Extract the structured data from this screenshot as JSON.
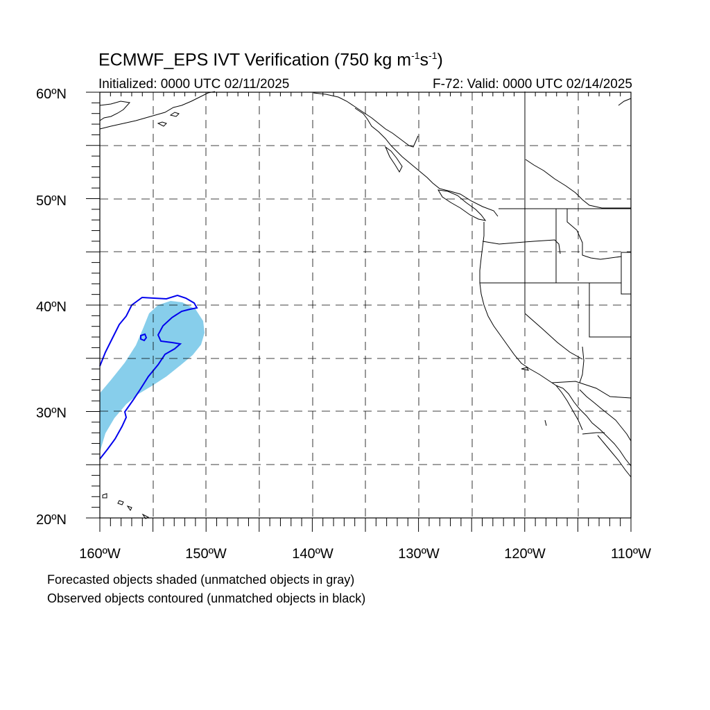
{
  "title": {
    "main": "ECMWF_EPS IVT Verification (750 kg m",
    "sup1": "-1",
    "mid": "s",
    "sup2": "-1",
    "close": ")"
  },
  "subtitle": {
    "initialized": "Initialized: 0000 UTC 02/11/2025",
    "valid": "F-72: Valid: 0000 UTC 02/14/2025"
  },
  "map": {
    "lon_range": [
      -160,
      -110
    ],
    "lat_range": [
      20,
      60
    ],
    "grid_lines": "dashed",
    "lat_labels": [
      "20ºN",
      "30ºN",
      "40ºN",
      "50ºN",
      "60ºN"
    ],
    "lon_labels": [
      "160ºW",
      "150ºW",
      "140ºW",
      "130ºW",
      "120ºW",
      "110ºW"
    ],
    "forecast_object_color": "#87ceeb",
    "observed_contour_color": "#0000ee"
  },
  "legend": {
    "line1": "Forecasted objects shaded (unmatched objects in gray)",
    "line2": "Observed objects contoured (unmatched objects in black)"
  }
}
